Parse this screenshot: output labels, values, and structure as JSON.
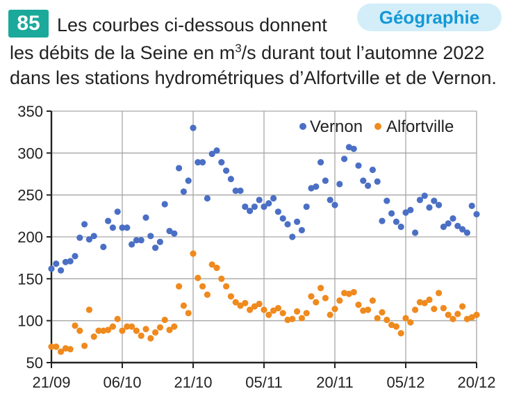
{
  "exercise": {
    "number": "85",
    "subject": "Géographie",
    "line1": "Les courbes ci-dessous donnent",
    "line2_pre": "les débits de la Seine en m",
    "line2_sup": "3",
    "line2_post": "/s durant tout l’automne 2022",
    "line3": "dans les stations hydrométriques d’Alfortville et de Vernon."
  },
  "chart_data": {
    "type": "scatter",
    "title": "",
    "xlabel": "",
    "ylabel": "",
    "x_unit": "day offset from 21/09",
    "xlim": [
      0,
      90
    ],
    "ylim": [
      50,
      350
    ],
    "yticks": [
      50,
      100,
      150,
      200,
      250,
      300,
      350
    ],
    "xticks": [
      0,
      15,
      30,
      45,
      60,
      75,
      90
    ],
    "xtick_labels": [
      "21/09",
      "06/10",
      "21/10",
      "05/11",
      "20/11",
      "05/12",
      "20/12"
    ],
    "grid": true,
    "legend_position": "top-right",
    "colors": {
      "Vernon": "#4a6fc4",
      "Alfortville": "#ef8a1e",
      "grid": "#a6a6a6",
      "axis": "#222222"
    },
    "series": [
      {
        "name": "Vernon",
        "values": [
          [
            0,
            162
          ],
          [
            1,
            168
          ],
          [
            2,
            160
          ],
          [
            3,
            170
          ],
          [
            4,
            171
          ],
          [
            5,
            177
          ],
          [
            6,
            199
          ],
          [
            7,
            215
          ],
          [
            8,
            197
          ],
          [
            9,
            201
          ],
          [
            11,
            188
          ],
          [
            12,
            219
          ],
          [
            13,
            211
          ],
          [
            14,
            230
          ],
          [
            15,
            211
          ],
          [
            16,
            211
          ],
          [
            17,
            191
          ],
          [
            18,
            196
          ],
          [
            19,
            196
          ],
          [
            20,
            223
          ],
          [
            21,
            201
          ],
          [
            22,
            187
          ],
          [
            23,
            194
          ],
          [
            24,
            239
          ],
          [
            25,
            207
          ],
          [
            26,
            204
          ],
          [
            27,
            282
          ],
          [
            28,
            254
          ],
          [
            29,
            267
          ],
          [
            30,
            330
          ],
          [
            31,
            289
          ],
          [
            32,
            289
          ],
          [
            33,
            246
          ],
          [
            34,
            299
          ],
          [
            35,
            303
          ],
          [
            36,
            289
          ],
          [
            37,
            279
          ],
          [
            38,
            269
          ],
          [
            39,
            255
          ],
          [
            40,
            255
          ],
          [
            41,
            236
          ],
          [
            42,
            231
          ],
          [
            43,
            236
          ],
          [
            44,
            244
          ],
          [
            45,
            236
          ],
          [
            46,
            240
          ],
          [
            47,
            246
          ],
          [
            48,
            230
          ],
          [
            49,
            222
          ],
          [
            50,
            215
          ],
          [
            51,
            200
          ],
          [
            52,
            218
          ],
          [
            53,
            208
          ],
          [
            54,
            236
          ],
          [
            55,
            258
          ],
          [
            56,
            260
          ],
          [
            57,
            289
          ],
          [
            58,
            267
          ],
          [
            59,
            244
          ],
          [
            60,
            238
          ],
          [
            61,
            263
          ],
          [
            62,
            293
          ],
          [
            63,
            307
          ],
          [
            64,
            305
          ],
          [
            65,
            285
          ],
          [
            66,
            267
          ],
          [
            67,
            261
          ],
          [
            68,
            280
          ],
          [
            69,
            266
          ],
          [
            70,
            219
          ],
          [
            71,
            243
          ],
          [
            72,
            228
          ],
          [
            73,
            218
          ],
          [
            74,
            212
          ],
          [
            75,
            229
          ],
          [
            76,
            232
          ],
          [
            77,
            205
          ],
          [
            78,
            244
          ],
          [
            79,
            249
          ],
          [
            80,
            235
          ],
          [
            81,
            243
          ],
          [
            82,
            238
          ],
          [
            83,
            212
          ],
          [
            84,
            216
          ],
          [
            85,
            222
          ],
          [
            86,
            213
          ],
          [
            87,
            209
          ],
          [
            88,
            205
          ],
          [
            89,
            237
          ],
          [
            90,
            227
          ]
        ]
      },
      {
        "name": "Alfortville",
        "values": [
          [
            0,
            69
          ],
          [
            1,
            69
          ],
          [
            2,
            63
          ],
          [
            3,
            67
          ],
          [
            4,
            66
          ],
          [
            5,
            94
          ],
          [
            6,
            88
          ],
          [
            7,
            70
          ],
          [
            8,
            113
          ],
          [
            9,
            81
          ],
          [
            10,
            88
          ],
          [
            11,
            88
          ],
          [
            12,
            89
          ],
          [
            13,
            93
          ],
          [
            14,
            102
          ],
          [
            15,
            88
          ],
          [
            16,
            93
          ],
          [
            17,
            93
          ],
          [
            18,
            88
          ],
          [
            19,
            82
          ],
          [
            20,
            90
          ],
          [
            21,
            79
          ],
          [
            22,
            86
          ],
          [
            23,
            92
          ],
          [
            24,
            101
          ],
          [
            25,
            89
          ],
          [
            26,
            93
          ],
          [
            27,
            141
          ],
          [
            28,
            118
          ],
          [
            29,
            109
          ],
          [
            30,
            180
          ],
          [
            31,
            151
          ],
          [
            32,
            141
          ],
          [
            33,
            131
          ],
          [
            34,
            167
          ],
          [
            35,
            163
          ],
          [
            36,
            150
          ],
          [
            37,
            141
          ],
          [
            38,
            129
          ],
          [
            39,
            122
          ],
          [
            40,
            118
          ],
          [
            41,
            121
          ],
          [
            42,
            113
          ],
          [
            43,
            117
          ],
          [
            44,
            120
          ],
          [
            45,
            113
          ],
          [
            46,
            107
          ],
          [
            47,
            112
          ],
          [
            48,
            115
          ],
          [
            49,
            109
          ],
          [
            50,
            101
          ],
          [
            51,
            102
          ],
          [
            52,
            111
          ],
          [
            53,
            103
          ],
          [
            54,
            109
          ],
          [
            55,
            129
          ],
          [
            56,
            122
          ],
          [
            57,
            139
          ],
          [
            58,
            127
          ],
          [
            59,
            107
          ],
          [
            60,
            114
          ],
          [
            61,
            124
          ],
          [
            62,
            133
          ],
          [
            63,
            132
          ],
          [
            64,
            134
          ],
          [
            65,
            119
          ],
          [
            66,
            112
          ],
          [
            67,
            113
          ],
          [
            68,
            124
          ],
          [
            69,
            103
          ],
          [
            70,
            110
          ],
          [
            71,
            101
          ],
          [
            72,
            95
          ],
          [
            73,
            93
          ],
          [
            74,
            85
          ],
          [
            75,
            103
          ],
          [
            76,
            98
          ],
          [
            77,
            113
          ],
          [
            78,
            122
          ],
          [
            79,
            121
          ],
          [
            80,
            125
          ],
          [
            81,
            114
          ],
          [
            82,
            133
          ],
          [
            83,
            115
          ],
          [
            84,
            107
          ],
          [
            85,
            102
          ],
          [
            86,
            108
          ],
          [
            87,
            117
          ],
          [
            88,
            102
          ],
          [
            89,
            104
          ],
          [
            90,
            107
          ]
        ]
      }
    ]
  }
}
